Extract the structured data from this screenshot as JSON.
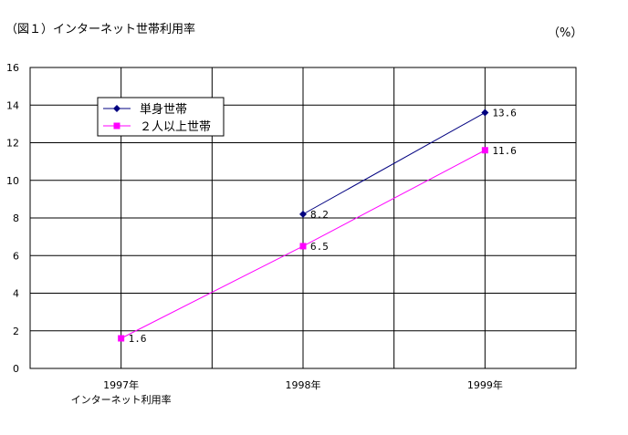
{
  "chart_data": {
    "type": "line",
    "title": "（図１）インターネット世帯利用率",
    "unit_label": "（%）",
    "categories": [
      "1997年",
      "1998年",
      "1999年"
    ],
    "category_sublabels": [
      "インターネット利用率",
      "",
      ""
    ],
    "ylim": [
      0,
      16
    ],
    "yticks": [
      0,
      2,
      4,
      6,
      8,
      10,
      12,
      14,
      16
    ],
    "grid": true,
    "legend_position": "top-left",
    "series": [
      {
        "name": "単身世帯",
        "values": [
          null,
          8.2,
          13.6
        ],
        "labels": [
          "",
          "8.2",
          "13.6"
        ],
        "color": "#000080",
        "marker": "diamond"
      },
      {
        "name": "２人以上世帯",
        "values": [
          1.6,
          6.5,
          11.6
        ],
        "labels": [
          "1.6",
          "6.5",
          "11.6"
        ],
        "color": "#ff00ff",
        "marker": "square"
      }
    ]
  }
}
